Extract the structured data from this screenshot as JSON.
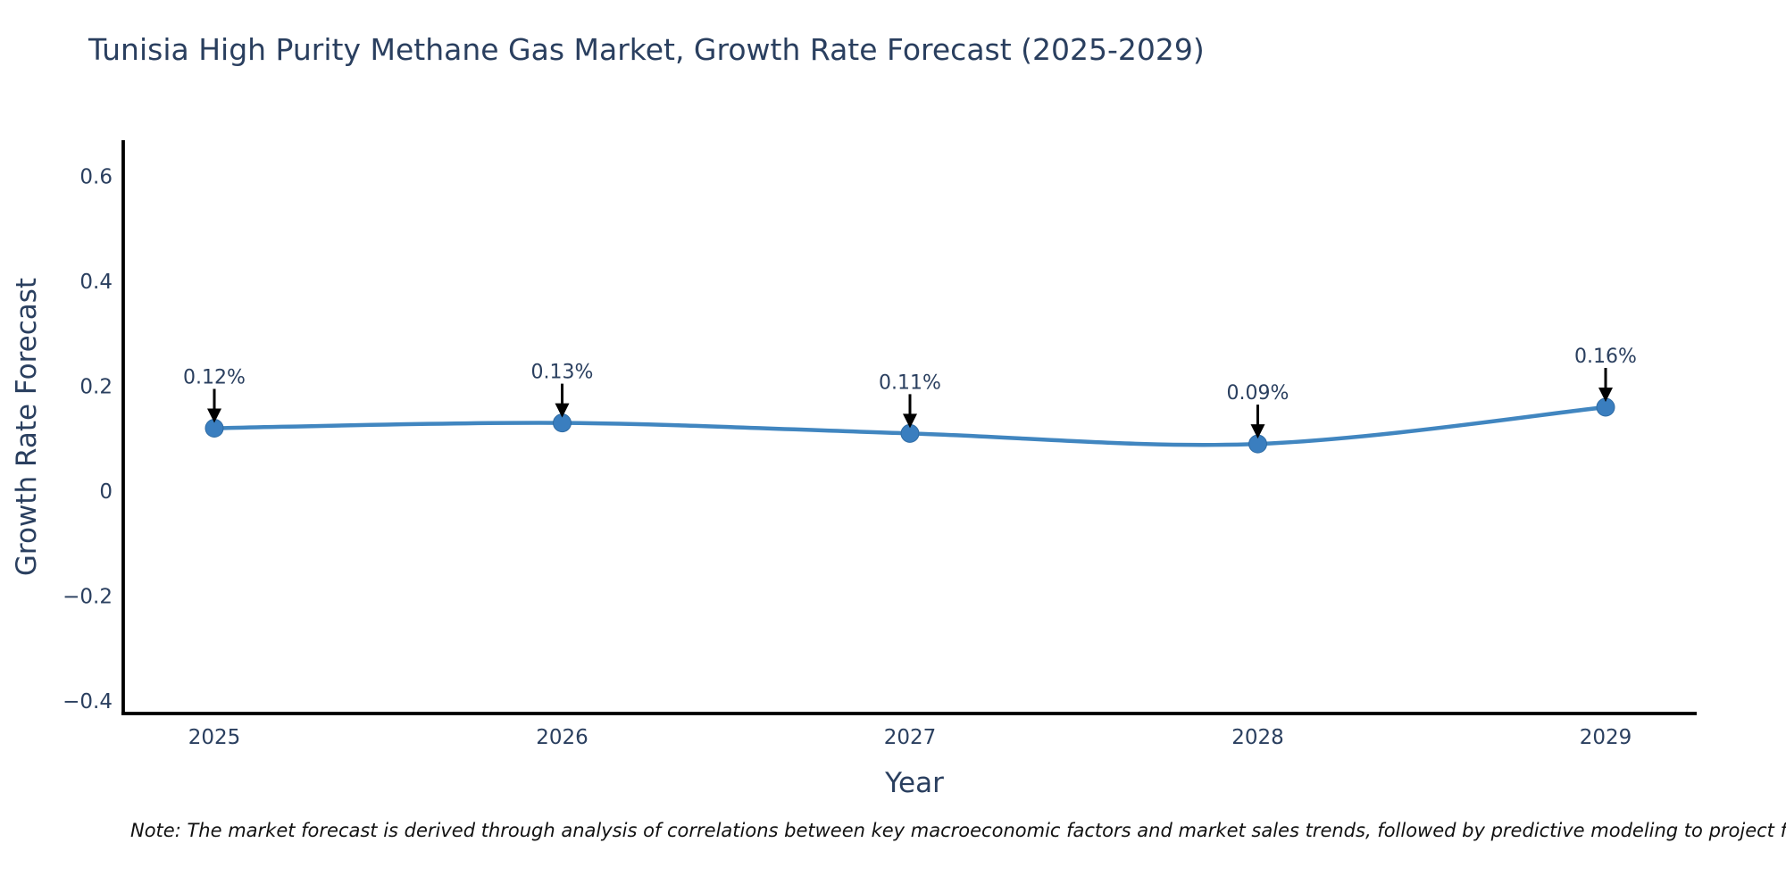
{
  "page": {
    "background": "#ffffff"
  },
  "note": "Note: The market forecast is derived through analysis of correlations between key macroeconomic factors and market sales trends, followed by predictive modeling to project future sa",
  "chart_data": {
    "type": "line",
    "title": "Tunisia High Purity Methane Gas Market, Growth Rate Forecast (2025-2029)",
    "xlabel": "Year",
    "ylabel": "Growth Rate Forecast",
    "categories": [
      "2025",
      "2026",
      "2027",
      "2028",
      "2029"
    ],
    "series": [
      {
        "name": "Growth Rate Forecast",
        "values": [
          0.12,
          0.13,
          0.11,
          0.09,
          0.16
        ]
      }
    ],
    "point_labels": [
      "0.12%",
      "0.13%",
      "0.11%",
      "0.09%",
      "0.16%"
    ],
    "yticks": [
      0.6,
      0.4,
      0.2,
      0,
      -0.2,
      -0.4
    ],
    "ytick_labels": [
      "0.6",
      "0.4",
      "0.2",
      "0",
      "−0.2",
      "−0.4"
    ],
    "ylim": [
      -0.424,
      0.669
    ],
    "grid": false,
    "legend": false,
    "annotations_have_arrows": true,
    "colors": {
      "line": "#4186c0",
      "marker": "#3a7ebf",
      "marker_edge": "#2f6ba3",
      "axis": "#000000",
      "tick_text": "#2a3f5f",
      "annotation_text": "#2a3f5f",
      "annotation_arrow": "#000000"
    }
  }
}
